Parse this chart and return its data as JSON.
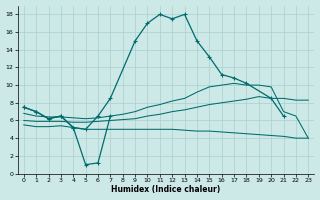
{
  "xlabel": "Humidex (Indice chaleur)",
  "background_color": "#cce9e8",
  "grid_color": "#aacfce",
  "line_color": "#006b6b",
  "xlim": [
    -0.5,
    23.5
  ],
  "ylim": [
    0,
    19
  ],
  "xticks": [
    0,
    1,
    2,
    3,
    4,
    5,
    6,
    7,
    8,
    9,
    10,
    11,
    12,
    13,
    14,
    15,
    16,
    17,
    18,
    19,
    20,
    21,
    22,
    23
  ],
  "yticks": [
    0,
    2,
    4,
    6,
    8,
    10,
    12,
    14,
    16,
    18
  ],
  "curve1_x": [
    0,
    1,
    2,
    3,
    4,
    5,
    6,
    7,
    9,
    10,
    11,
    12,
    13,
    14,
    15,
    16,
    17,
    18,
    20,
    21
  ],
  "curve1_y": [
    7.5,
    7.0,
    6.2,
    6.5,
    5.2,
    5.0,
    6.5,
    8.5,
    15.0,
    17.0,
    18.0,
    17.5,
    18.0,
    15.0,
    13.2,
    11.2,
    10.8,
    10.2,
    8.5,
    6.5
  ],
  "curve2_x": [
    0,
    1,
    2,
    3,
    4,
    5,
    6,
    7
  ],
  "curve2_y": [
    7.5,
    7.0,
    6.2,
    6.5,
    5.2,
    1.0,
    1.2,
    6.5
  ],
  "line1_x": [
    0,
    1,
    2,
    3,
    4,
    5,
    6,
    7,
    8,
    9,
    10,
    11,
    12,
    13,
    14,
    15,
    16,
    17,
    18,
    19,
    20,
    21,
    22,
    23
  ],
  "line1_y": [
    5.5,
    5.3,
    5.3,
    5.4,
    5.2,
    5.0,
    5.0,
    5.0,
    5.0,
    5.0,
    5.0,
    5.0,
    5.0,
    4.9,
    4.8,
    4.8,
    4.7,
    4.6,
    4.5,
    4.4,
    4.3,
    4.2,
    4.0,
    4.0
  ],
  "line2_x": [
    0,
    1,
    2,
    3,
    4,
    5,
    6,
    7,
    8,
    9,
    10,
    11,
    12,
    13,
    14,
    15,
    16,
    17,
    18,
    19,
    20,
    21,
    22,
    23
  ],
  "line2_y": [
    6.0,
    5.9,
    5.9,
    5.9,
    5.8,
    5.8,
    5.9,
    6.0,
    6.1,
    6.2,
    6.5,
    6.7,
    7.0,
    7.2,
    7.5,
    7.8,
    8.0,
    8.2,
    8.4,
    8.7,
    8.5,
    8.5,
    8.3,
    8.3
  ],
  "line3_x": [
    0,
    1,
    2,
    3,
    4,
    5,
    6,
    7,
    8,
    9,
    10,
    11,
    12,
    13,
    14,
    15,
    16,
    17,
    18,
    19,
    20,
    21,
    22,
    23
  ],
  "line3_y": [
    6.8,
    6.5,
    6.4,
    6.4,
    6.3,
    6.2,
    6.3,
    6.5,
    6.7,
    7.0,
    7.5,
    7.8,
    8.2,
    8.5,
    9.2,
    9.8,
    10.0,
    10.2,
    10.0,
    10.0,
    9.8,
    7.0,
    6.5,
    4.0
  ]
}
